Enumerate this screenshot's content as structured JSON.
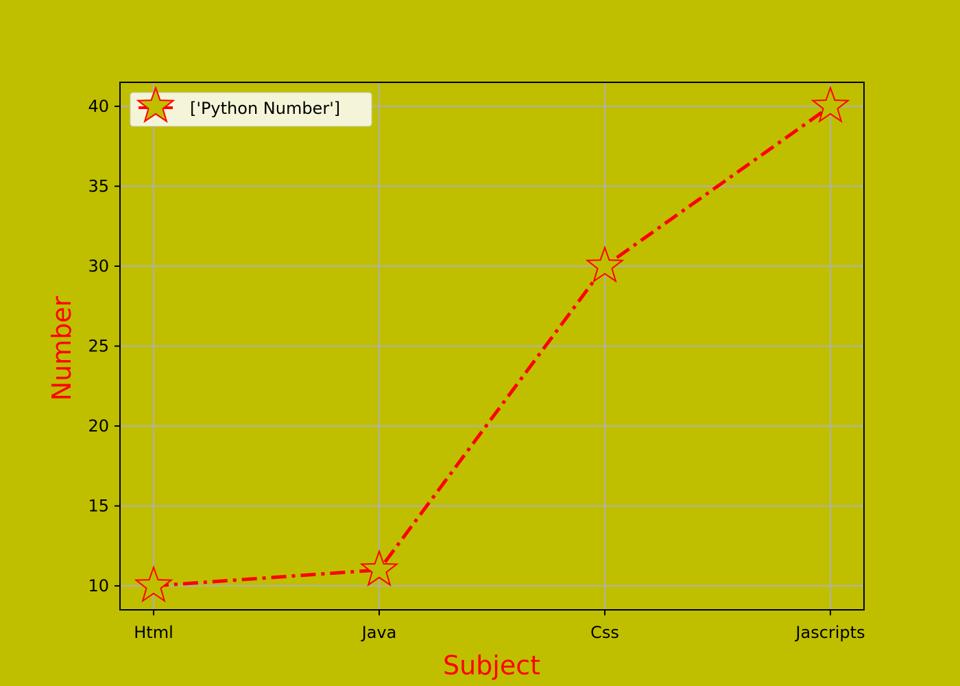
{
  "chart_data": {
    "type": "line",
    "categories": [
      "Html",
      "Java",
      "Css",
      "Jascripts"
    ],
    "series": [
      {
        "name": "['Python Number']",
        "values": [
          10,
          11,
          30,
          40
        ]
      }
    ],
    "xlabel": "Subject",
    "ylabel": "Number",
    "ylim": [
      8.5,
      41.5
    ],
    "yticks": [
      10,
      15,
      20,
      25,
      30,
      35,
      40
    ],
    "grid": true,
    "legend_position": "top-left",
    "line_style": "dash-dot",
    "marker": "star",
    "colors": {
      "background": "#bfbf00",
      "plot_background": "#bfbf00",
      "line": "#ff0000",
      "marker_edge": "#ff0000",
      "marker_face": "#bfbf00",
      "axis_label": "#ff0000",
      "grid": "#b0b0b0",
      "legend_background": "#f4f4d8"
    }
  }
}
